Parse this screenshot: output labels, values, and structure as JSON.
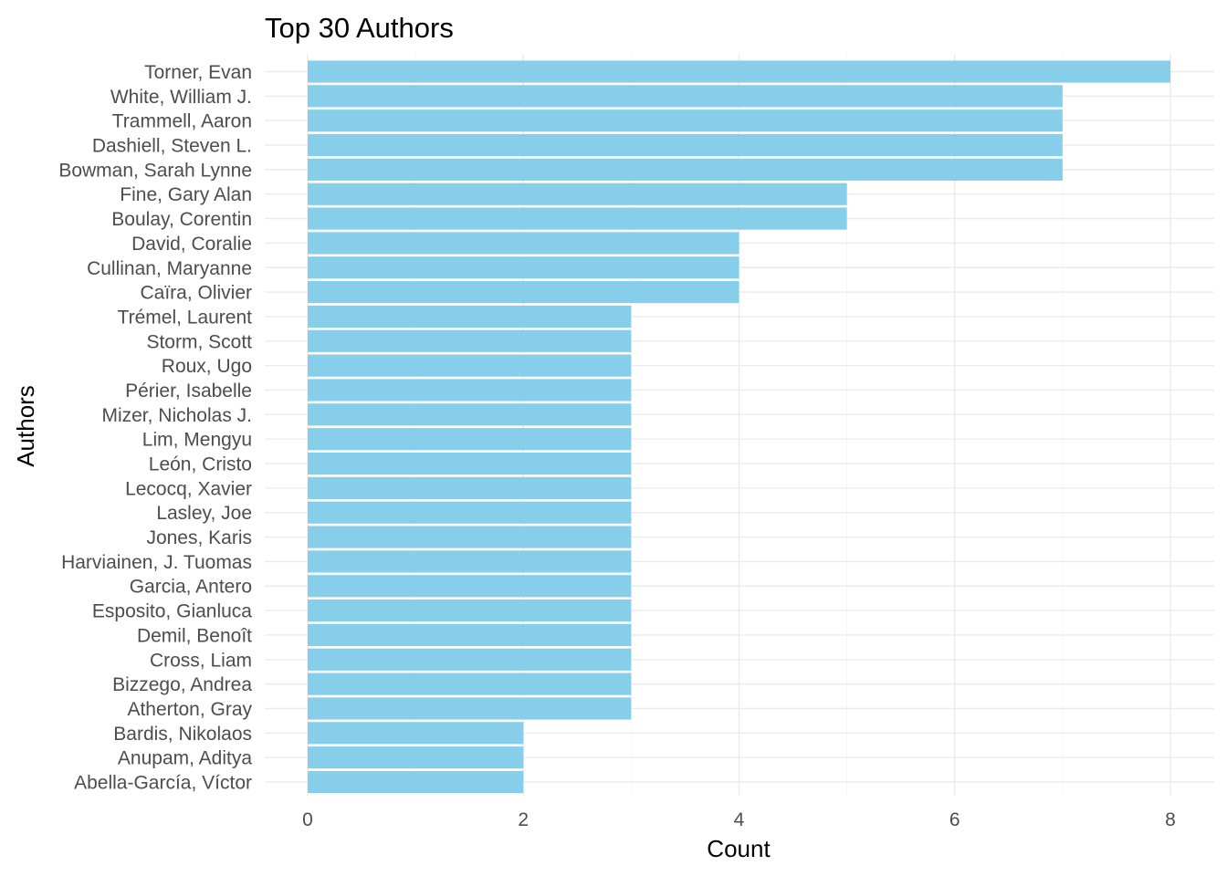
{
  "chart_data": {
    "type": "bar",
    "orientation": "horizontal",
    "title": "Top 30 Authors",
    "xlabel": "Count",
    "ylabel": "Authors",
    "xlim": [
      0,
      8
    ],
    "x_ticks": [
      0,
      2,
      4,
      6,
      8
    ],
    "grid": true,
    "bar_color": "#87ceeb",
    "categories": [
      "Torner, Evan",
      "White, William J.",
      "Trammell, Aaron",
      "Dashiell, Steven L.",
      "Bowman, Sarah Lynne",
      "Fine, Gary Alan",
      "Boulay, Corentin",
      "David, Coralie",
      "Cullinan, Maryanne",
      "Caïra, Olivier",
      "Trémel, Laurent",
      "Storm, Scott",
      "Roux, Ugo",
      "Périer, Isabelle",
      "Mizer, Nicholas J.",
      "Lim, Mengyu",
      "León, Cristo",
      "Lecocq, Xavier",
      "Lasley, Joe",
      "Jones, Karis",
      "Harviainen, J. Tuomas",
      "Garcia, Antero",
      "Esposito, Gianluca",
      "Demil, Benoît",
      "Cross, Liam",
      "Bizzego, Andrea",
      "Atherton, Gray",
      "Bardis, Nikolaos",
      "Anupam, Aditya",
      "Abella-García, Víctor"
    ],
    "values": [
      8,
      7,
      7,
      7,
      7,
      5,
      5,
      4,
      4,
      4,
      3,
      3,
      3,
      3,
      3,
      3,
      3,
      3,
      3,
      3,
      3,
      3,
      3,
      3,
      3,
      3,
      3,
      2,
      2,
      2
    ]
  }
}
